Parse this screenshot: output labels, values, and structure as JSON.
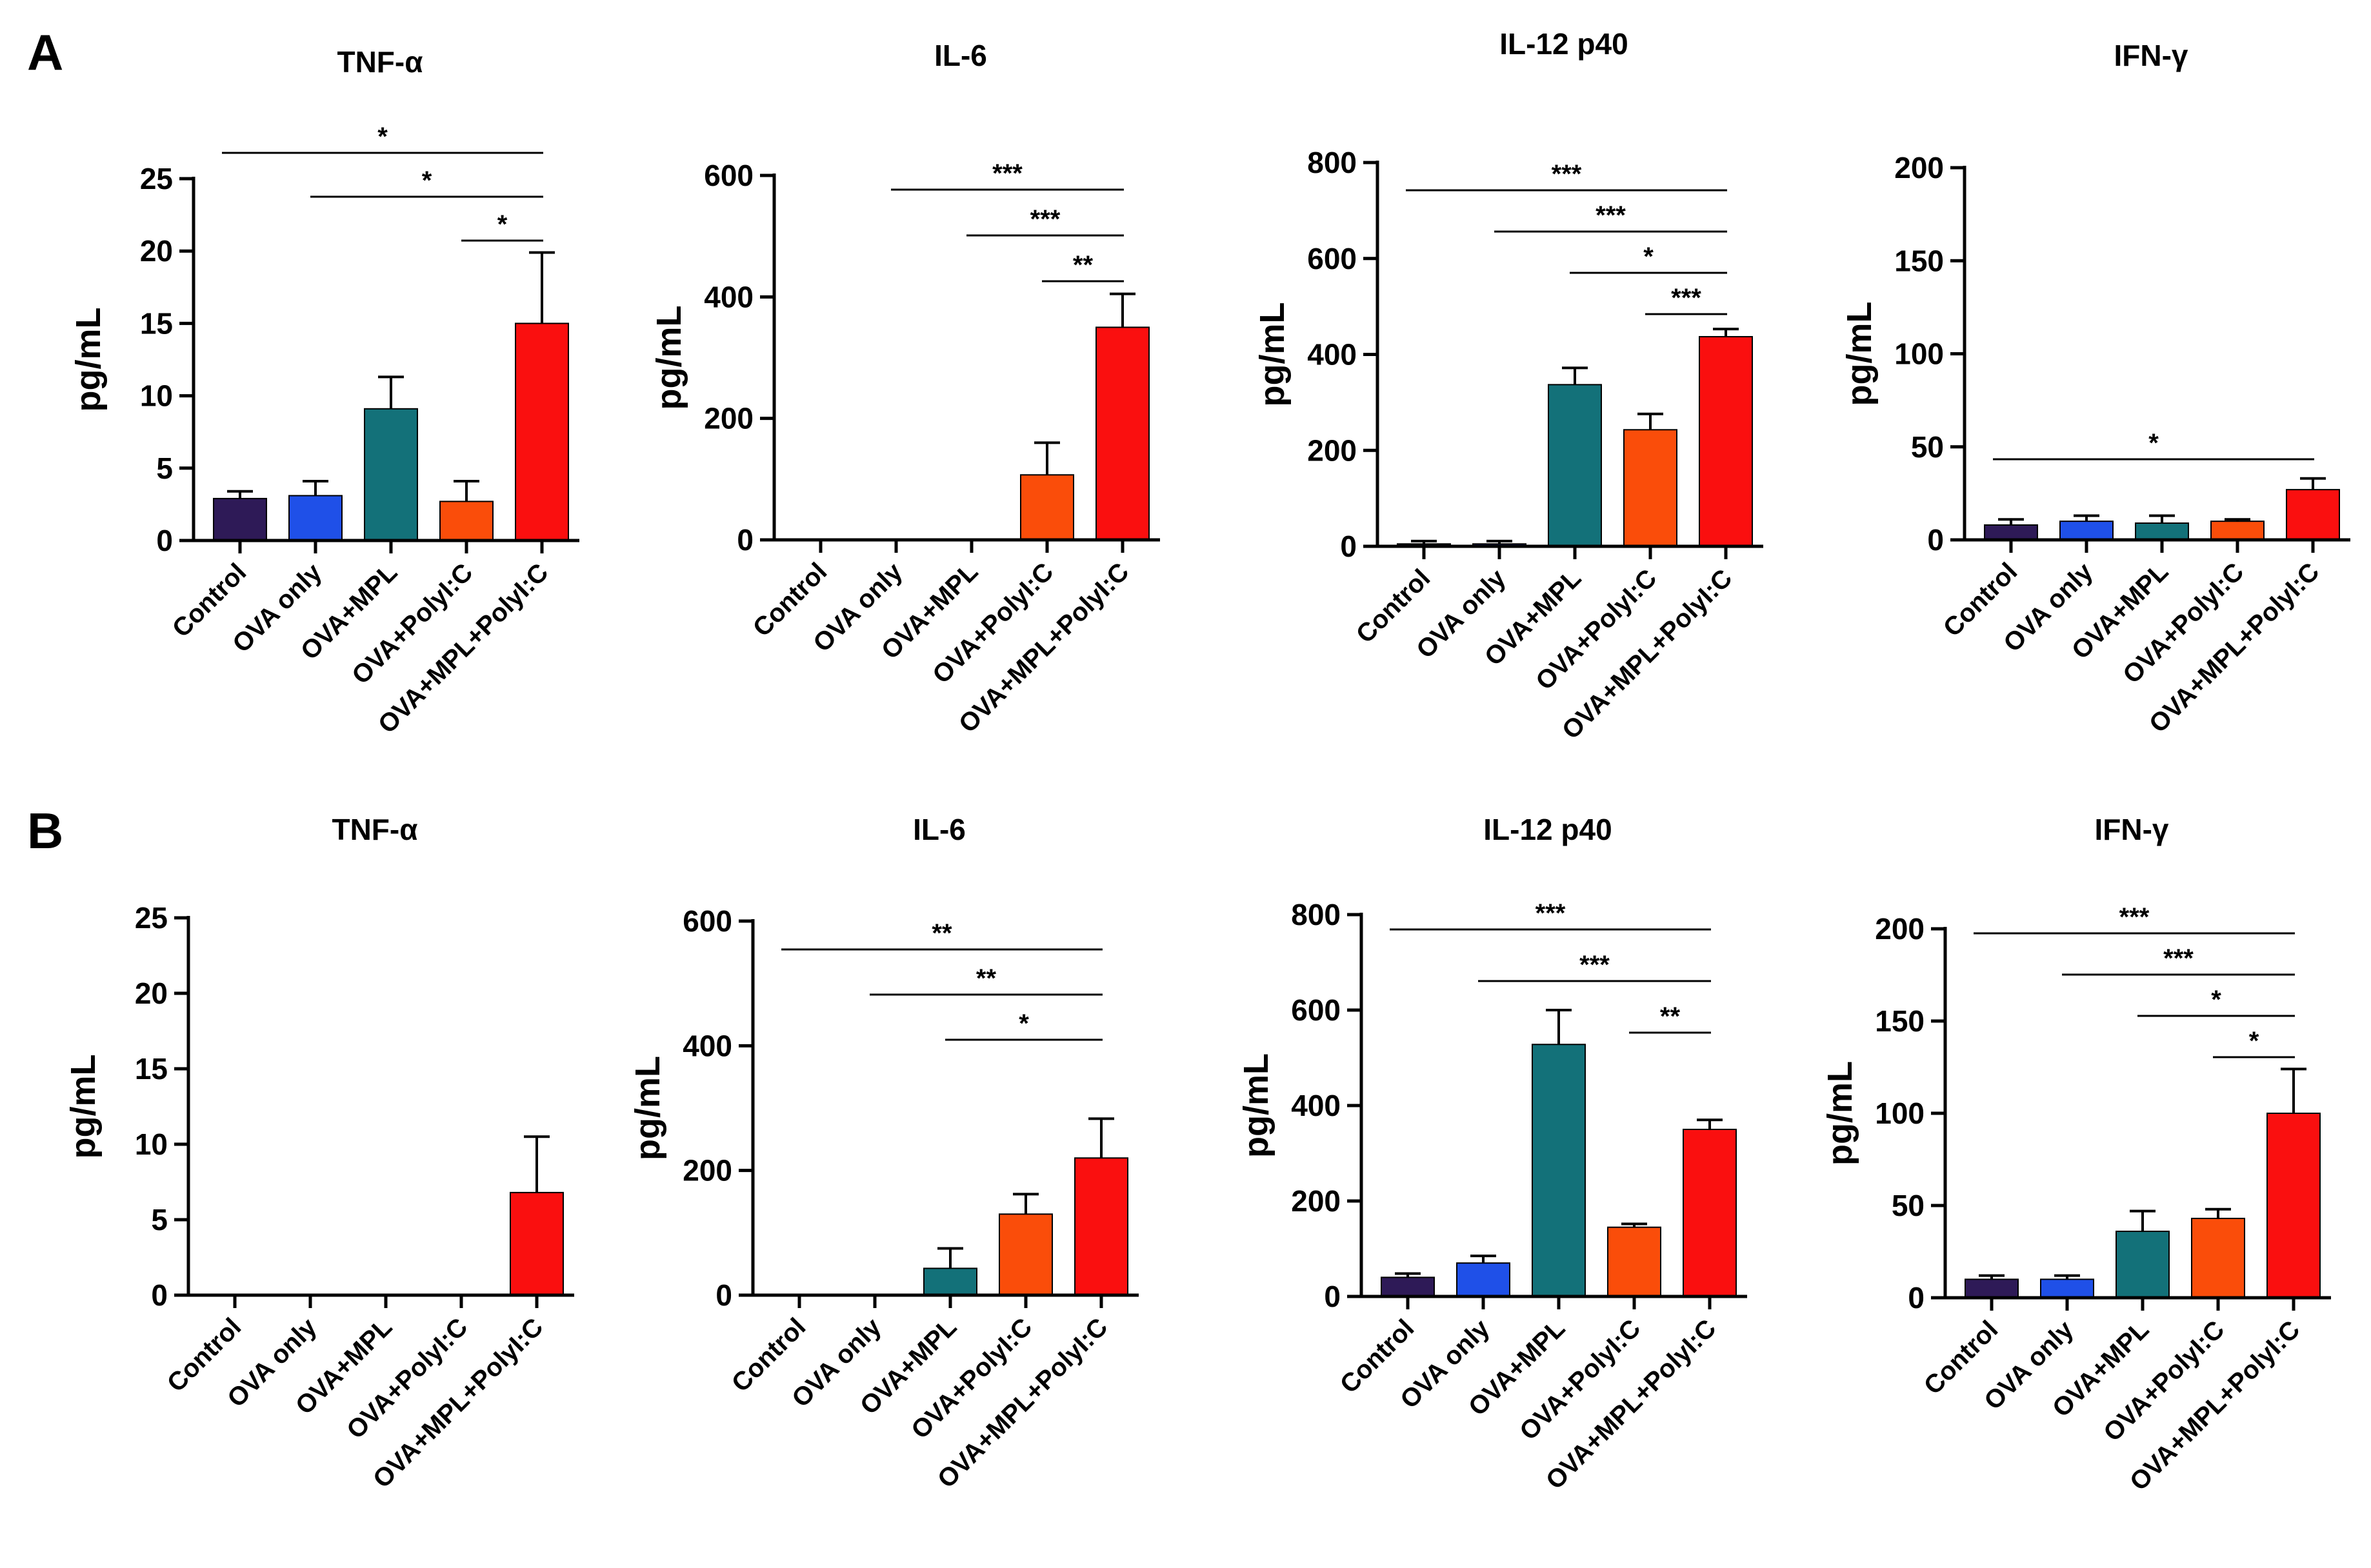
{
  "panels": [
    {
      "id": "A",
      "label": "A"
    },
    {
      "id": "B",
      "label": "B"
    }
  ],
  "colors": {
    "Control": "#2e1a57",
    "OVA only": "#1f50e8",
    "OVA+MPL": "#137179",
    "OVA+PolyI:C": "#fa4d0a",
    "OVA+MPL+PolyI:C": "#fa0f0f"
  },
  "chart_data": [
    {
      "type": "bar",
      "panel": "A",
      "title": "TNF-α",
      "ylabel": "pg/mL",
      "xlabel": "",
      "categories": [
        "Control",
        "OVA only",
        "OVA+MPL",
        "OVA+PolyI:C",
        "OVA+MPL+PolyI:C"
      ],
      "category_labels": [
        "Control",
        "OVA only",
        "OVA+MPL",
        "OVA+PolyI:C",
        "OVA+MPL+PolyI:C"
      ],
      "values": [
        2.9,
        3.1,
        9.1,
        2.7,
        15.0
      ],
      "errors": [
        0.5,
        1.0,
        2.2,
        1.4,
        4.9
      ],
      "ylim": [
        0,
        25
      ],
      "yticks": [
        0,
        5,
        10,
        15,
        20,
        25
      ],
      "ytick_labels": [
        "0",
        "5",
        "10",
        "15",
        "20",
        "25"
      ],
      "significance": [
        {
          "from": 0,
          "to": 4,
          "label": "*"
        },
        {
          "from": 1,
          "to": 4,
          "label": "*"
        },
        {
          "from": 3,
          "to": 4,
          "label": "*"
        }
      ]
    },
    {
      "type": "bar",
      "panel": "A",
      "title": "IL-6",
      "ylabel": "pg/mL",
      "xlabel": "",
      "categories": [
        "Control",
        "OVA only",
        "OVA+MPL",
        "OVA+PolyI:C",
        "OVA+MPL+PolyI:C"
      ],
      "category_labels": [
        "Control",
        "OVA only",
        "OVA+MPL",
        "OVA+PolyI:C",
        "OVA+MPL+PolyI:C"
      ],
      "values": [
        0,
        0,
        0,
        107,
        350
      ],
      "errors": [
        0,
        0,
        0,
        53,
        55
      ],
      "ylim": [
        0,
        600
      ],
      "yticks": [
        0,
        200,
        400,
        600
      ],
      "ytick_labels": [
        "0",
        "200",
        "400",
        "600"
      ],
      "significance": [
        {
          "from": 1,
          "to": 4,
          "label": "***"
        },
        {
          "from": 2,
          "to": 4,
          "label": "***"
        },
        {
          "from": 3,
          "to": 4,
          "label": "**"
        }
      ]
    },
    {
      "type": "bar",
      "panel": "A",
      "title": "IL-12 p40",
      "ylabel": "pg/mL",
      "xlabel": "",
      "categories": [
        "Control",
        "OVA only",
        "OVA+MPL",
        "OVA+PolyI:C",
        "OVA+MPL+PolyI:C"
      ],
      "category_labels": [
        "Control",
        "OVA only",
        "OVA+MPL",
        "OVA+PolyI:C",
        "OVA+MPL+PolyI:C"
      ],
      "values": [
        5,
        5,
        337,
        243,
        437
      ],
      "errors": [
        6,
        6,
        35,
        33,
        16
      ],
      "ylim": [
        0,
        800
      ],
      "yticks": [
        0,
        200,
        400,
        600,
        800
      ],
      "ytick_labels": [
        "0",
        "200",
        "400",
        "600",
        "800"
      ],
      "significance": [
        {
          "from": 0,
          "to": 4,
          "label": "***"
        },
        {
          "from": 1,
          "to": 4,
          "label": "***"
        },
        {
          "from": 2,
          "to": 4,
          "label": "*"
        },
        {
          "from": 3,
          "to": 4,
          "label": "***"
        }
      ]
    },
    {
      "type": "bar",
      "panel": "A",
      "title": "IFN-γ",
      "ylabel": "pg/mL",
      "xlabel": "",
      "categories": [
        "Control",
        "OVA only",
        "OVA+MPL",
        "OVA+PolyI:C",
        "OVA+MPL+PolyI:C"
      ],
      "category_labels": [
        "Control",
        "OVA only",
        "OVA+MPL",
        "OVA+PolyI:C",
        "OVA+MPL+PolyI:C"
      ],
      "values": [
        8,
        10,
        9,
        10,
        27
      ],
      "errors": [
        3,
        3,
        4,
        1,
        6
      ],
      "ylim": [
        0,
        200
      ],
      "yticks": [
        0,
        50,
        100,
        150,
        200
      ],
      "ytick_labels": [
        "0",
        "50",
        "100",
        "150",
        "200"
      ],
      "significance": [
        {
          "from": 0,
          "to": 4,
          "label": "*"
        }
      ]
    },
    {
      "type": "bar",
      "panel": "B",
      "title": "TNF-α",
      "ylabel": "pg/mL",
      "xlabel": "",
      "categories": [
        "Control",
        "OVA only",
        "OVA+MPL",
        "OVA+PolyI:C",
        "OVA+MPL+PolyI:C"
      ],
      "category_labels": [
        "Control",
        "OVA only",
        "OVA+MPL",
        "OVA+PolyI:C",
        "OVA+MPL+PolyI:C"
      ],
      "values": [
        0,
        0,
        0,
        0,
        6.8
      ],
      "errors": [
        0,
        0,
        0,
        0,
        3.7
      ],
      "ylim": [
        0,
        25
      ],
      "yticks": [
        0,
        5,
        10,
        15,
        20,
        25
      ],
      "ytick_labels": [
        "0",
        "5",
        "10",
        "15",
        "20",
        "25"
      ],
      "significance": []
    },
    {
      "type": "bar",
      "panel": "B",
      "title": "IL-6",
      "ylabel": "pg/mL",
      "xlabel": "",
      "categories": [
        "Control",
        "OVA only",
        "OVA+MPL",
        "OVA+PolyI:C",
        "OVA+MPL+PolyI:C"
      ],
      "category_labels": [
        "Control",
        "OVA only",
        "OVA+MPL",
        "OVA+PolyI:C",
        "OVA+MPL+PolyI:C"
      ],
      "values": [
        0,
        0,
        43,
        130,
        220
      ],
      "errors": [
        0,
        0,
        32,
        32,
        63
      ],
      "ylim": [
        0,
        600
      ],
      "yticks": [
        0,
        200,
        400,
        600
      ],
      "ytick_labels": [
        "0",
        "200",
        "400",
        "600"
      ],
      "significance": [
        {
          "from": 0,
          "to": 4,
          "label": "**"
        },
        {
          "from": 1,
          "to": 4,
          "label": "**"
        },
        {
          "from": 2,
          "to": 4,
          "label": "*"
        }
      ]
    },
    {
      "type": "bar",
      "panel": "B",
      "title": "IL-12 p40",
      "ylabel": "pg/mL",
      "xlabel": "",
      "categories": [
        "Control",
        "OVA only",
        "OVA+MPL",
        "OVA+PolyI:C",
        "OVA+MPL+PolyI:C"
      ],
      "category_labels": [
        "Control",
        "OVA only",
        "OVA+MPL",
        "OVA+PolyI:C",
        "OVA+MPL+PolyI:C"
      ],
      "values": [
        40,
        70,
        528,
        145,
        350
      ],
      "errors": [
        8,
        15,
        72,
        7,
        20
      ],
      "ylim": [
        0,
        800
      ],
      "yticks": [
        0,
        200,
        400,
        600,
        800
      ],
      "ytick_labels": [
        "0",
        "200",
        "400",
        "600",
        "800"
      ],
      "significance": [
        {
          "from": 0,
          "to": 4,
          "label": "***"
        },
        {
          "from": 1,
          "to": 4,
          "label": "***"
        },
        {
          "from": 3,
          "to": 4,
          "label": "**"
        }
      ]
    },
    {
      "type": "bar",
      "panel": "B",
      "title": "IFN-γ",
      "ylabel": "pg/mL",
      "xlabel": "",
      "categories": [
        "Control",
        "OVA only",
        "OVA+MPL",
        "OVA+PolyI:C",
        "OVA+MPL+PolyI:C"
      ],
      "category_labels": [
        "Control",
        "OVA only",
        "OVA+MPL",
        "OVA+PolyI:C",
        "OVA+MPL+PolyI:C"
      ],
      "values": [
        10,
        10,
        36,
        43,
        100
      ],
      "errors": [
        2,
        2,
        11,
        5,
        24
      ],
      "ylim": [
        0,
        200
      ],
      "yticks": [
        0,
        50,
        100,
        150,
        200
      ],
      "ytick_labels": [
        "0",
        "50",
        "100",
        "150",
        "200"
      ],
      "significance": [
        {
          "from": 0,
          "to": 4,
          "label": "***"
        },
        {
          "from": 1,
          "to": 4,
          "label": "***"
        },
        {
          "from": 2,
          "to": 4,
          "label": "*"
        },
        {
          "from": 3,
          "to": 4,
          "label": "*"
        }
      ]
    }
  ]
}
